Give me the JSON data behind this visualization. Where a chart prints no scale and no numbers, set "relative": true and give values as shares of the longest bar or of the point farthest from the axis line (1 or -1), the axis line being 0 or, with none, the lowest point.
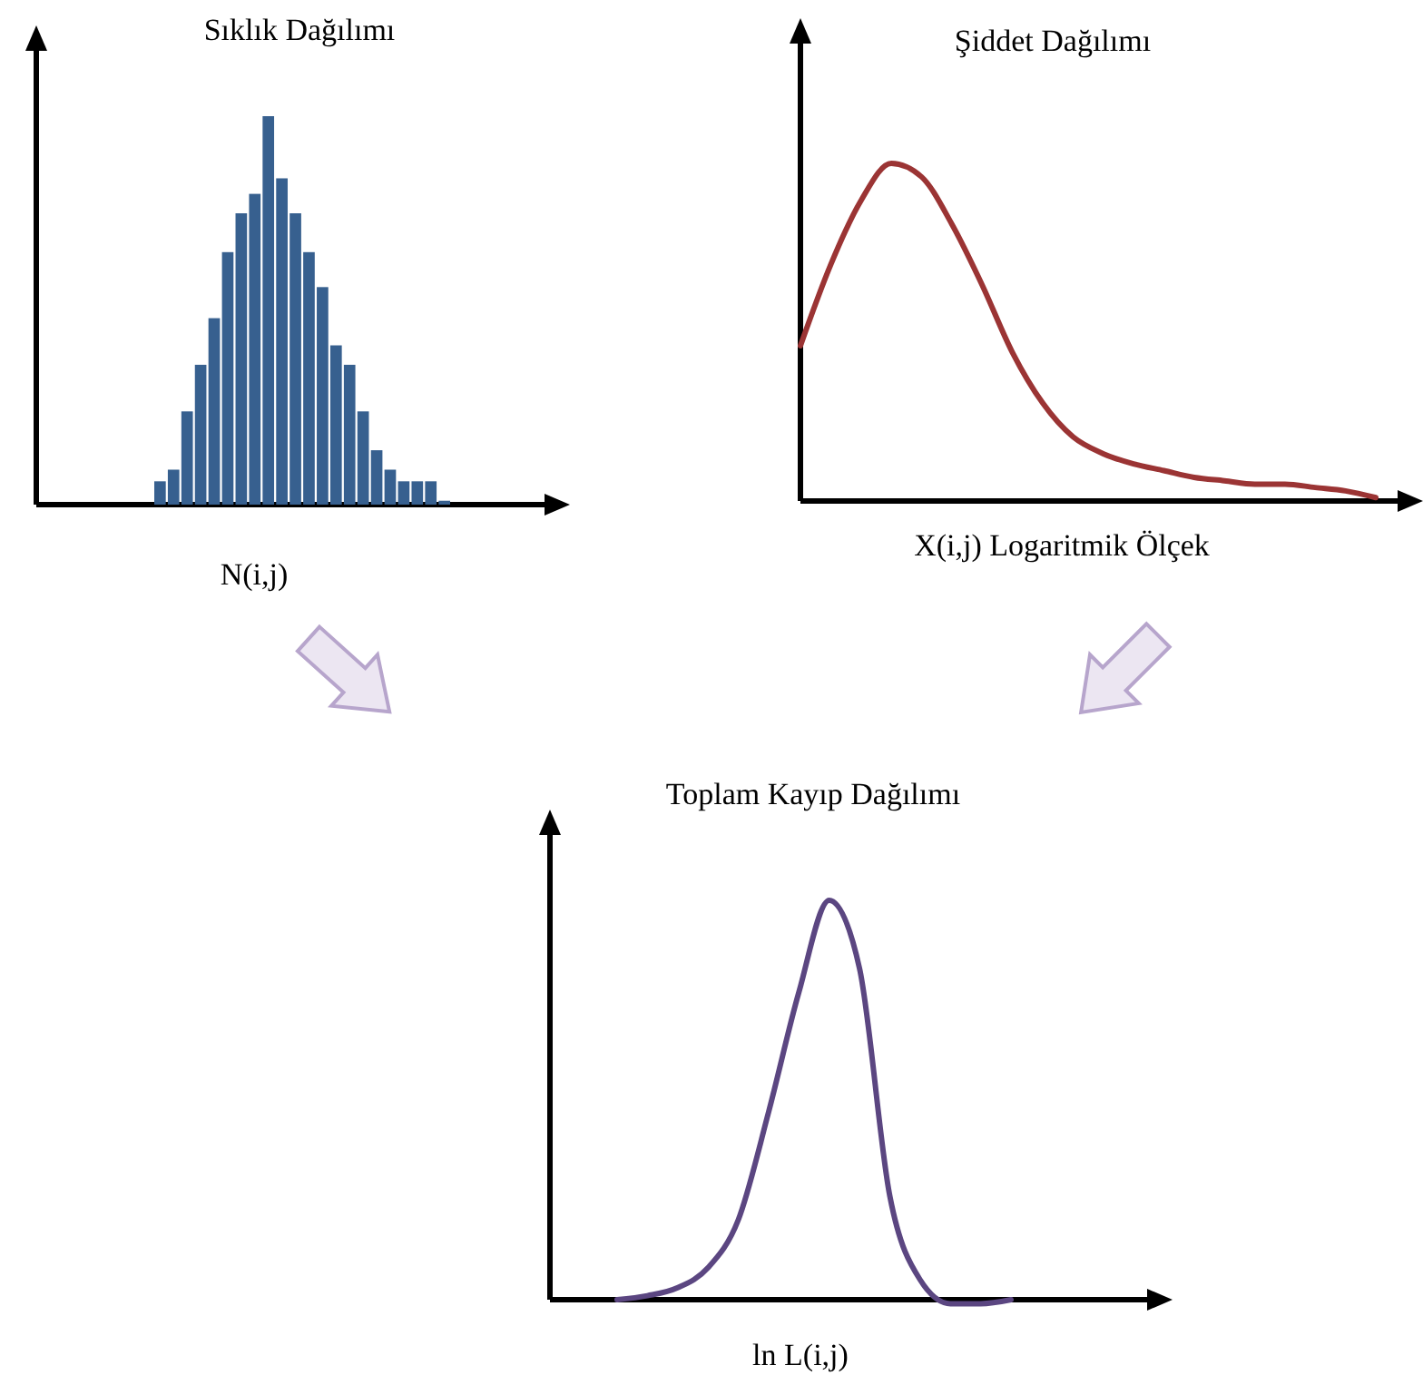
{
  "chart_data": [
    {
      "type": "bar",
      "title": "Sıklık Dağılımı",
      "xlabel": "N(i,j)",
      "relative": true,
      "color": "#37608f",
      "categories": [
        null,
        null,
        null,
        null,
        null,
        null,
        null,
        null,
        null,
        null,
        null,
        null,
        null,
        null,
        null,
        null,
        null,
        null,
        null,
        null,
        null,
        null
      ],
      "values": [
        0.06,
        0.09,
        0.24,
        0.36,
        0.48,
        0.65,
        0.75,
        0.8,
        1,
        0.84,
        0.75,
        0.65,
        0.56,
        0.41,
        0.36,
        0.24,
        0.14,
        0.09,
        0.06,
        0.06,
        0.06,
        0.01
      ]
    },
    {
      "type": "line",
      "title": "Şiddet Dağılımı",
      "xlabel": "X(i,j) Logaritmik Ölçek",
      "relative": true,
      "color": "#9b3434",
      "categories": [
        null,
        null,
        null,
        null,
        null,
        null,
        null,
        null,
        null,
        null,
        null,
        null,
        null,
        null,
        null,
        null,
        null,
        null,
        null,
        null
      ],
      "values": [
        0.46,
        0.7,
        0.89,
        1,
        0.96,
        0.82,
        0.64,
        0.44,
        0.29,
        0.19,
        0.14,
        0.11,
        0.09,
        0.07,
        0.06,
        0.05,
        0.05,
        0.04,
        0.03,
        0.01
      ]
    },
    {
      "type": "line",
      "title": "Toplam Kayıp Dağılımı",
      "xlabel": "ln L(i,j)",
      "relative": true,
      "color": "#5b4681",
      "categories": [
        null,
        null,
        null,
        null,
        null,
        null,
        null,
        null,
        null,
        null,
        null,
        null,
        null,
        null
      ],
      "values": [
        0,
        0.01,
        0.03,
        0.08,
        0.2,
        0.47,
        0.77,
        1,
        0.83,
        0.26,
        0.05,
        -0.01,
        -0.01,
        0
      ]
    }
  ]
}
